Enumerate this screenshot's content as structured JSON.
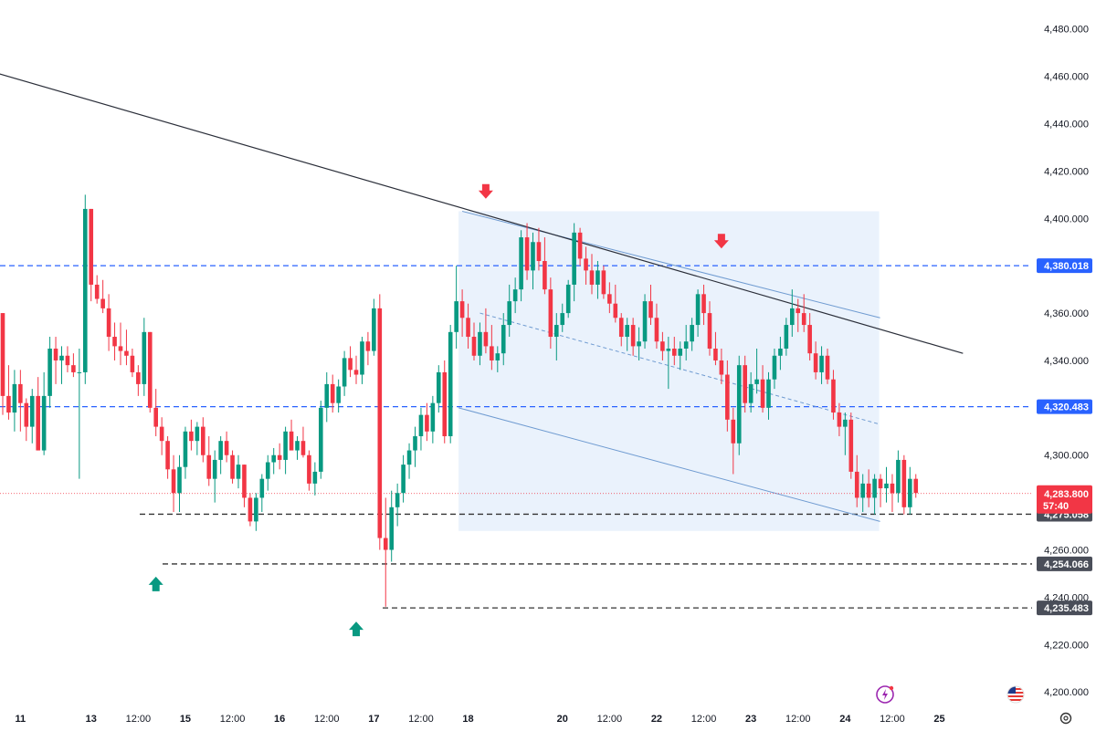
{
  "chart_data": {
    "type": "candlestick",
    "ylim": [
      4192,
      4488
    ],
    "y_ticks": [
      "4,480.000",
      "4,460.000",
      "4,440.000",
      "4,420.000",
      "4,400.000",
      "4,380.000",
      "4,360.000",
      "4,340.000",
      "4,320.000",
      "4,300.000",
      "4,280.000",
      "4,260.000",
      "4,240.000",
      "4,220.000",
      "4,200.000"
    ],
    "y_tick_values": [
      4480,
      4460,
      4440,
      4420,
      4400,
      4380,
      4360,
      4340,
      4320,
      4300,
      4280,
      4260,
      4240,
      4220,
      4200
    ],
    "x_ticks": [
      "11",
      "13",
      "12:00",
      "15",
      "12:00",
      "16",
      "12:00",
      "17",
      "12:00",
      "18",
      "20",
      "12:00",
      "22",
      "12:00",
      "23",
      "12:00",
      "24",
      "12:00",
      "25"
    ],
    "x_tick_bold": [
      true,
      true,
      false,
      true,
      false,
      true,
      false,
      true,
      false,
      true,
      true,
      false,
      true,
      false,
      true,
      false,
      true,
      false,
      true
    ],
    "x_tick_index": [
      3,
      15,
      23,
      31,
      39,
      47,
      55,
      63,
      71,
      79,
      95,
      103,
      111,
      119,
      127,
      135,
      143,
      151,
      159
    ],
    "levels": [
      {
        "label": "4,380.018",
        "value": 4380.018,
        "style": "blue-dashed"
      },
      {
        "label": "4,320.483",
        "value": 4320.483,
        "style": "blue-dashed"
      },
      {
        "label": "4,275.058",
        "value": 4275.058,
        "style": "black-dashed"
      },
      {
        "label": "4,254.066",
        "value": 4254.066,
        "style": "black-dashed"
      },
      {
        "label": "4,235.483",
        "value": 4235.483,
        "style": "black-dashed"
      }
    ],
    "current_price": {
      "label": "4,283.800",
      "countdown": "57:40",
      "value": 4283.8
    },
    "trendline": {
      "x1": -0.5,
      "y1": 4461,
      "x2": 163,
      "y2": 4343
    },
    "channel": {
      "upper": [
        78,
        4403,
        148,
        4358
      ],
      "lower": [
        78,
        4320,
        148,
        4272
      ],
      "mid": [
        81,
        4360,
        148,
        4313
      ]
    },
    "markers": [
      {
        "type": "down",
        "x": 82,
        "y": 4411
      },
      {
        "type": "down",
        "x": 122,
        "y": 4390
      },
      {
        "type": "up",
        "x": 26,
        "y": 4246
      },
      {
        "type": "up",
        "x": 60,
        "y": 4227
      }
    ],
    "colors": {
      "up": "#089981",
      "down": "#f23645",
      "level_blue": "#2962ff",
      "level_black": "#333333",
      "channel_fill": "#eaf2fc",
      "channel_line": "#6f9bd1",
      "tag_blue": "#2962ff",
      "tag_gray": "#4a4e59",
      "tag_red": "#f23645"
    },
    "candles": [
      [
        4360,
        4360,
        4317,
        4325
      ],
      [
        4325,
        4338,
        4315,
        4318
      ],
      [
        4318,
        4336,
        4310,
        4330
      ],
      [
        4330,
        4336,
        4310,
        4322
      ],
      [
        4322,
        4324,
        4306,
        4312
      ],
      [
        4312,
        4328,
        4305,
        4325
      ],
      [
        4325,
        4333,
        4302,
        4302
      ],
      [
        4302,
        4335,
        4300,
        4325
      ],
      [
        4325,
        4350,
        4320,
        4345
      ],
      [
        4345,
        4350,
        4330,
        4340
      ],
      [
        4340,
        4346,
        4330,
        4342
      ],
      [
        4342,
        4346,
        4335,
        4338
      ],
      [
        4338,
        4343,
        4333,
        4335
      ],
      [
        4335,
        4345,
        4290,
        4335
      ],
      [
        4335,
        4410,
        4330,
        4404
      ],
      [
        4404,
        4404,
        4365,
        4372
      ],
      [
        4372,
        4376,
        4364,
        4366
      ],
      [
        4366,
        4374,
        4360,
        4362
      ],
      [
        4362,
        4368,
        4344,
        4350
      ],
      [
        4350,
        4356,
        4340,
        4346
      ],
      [
        4346,
        4356,
        4338,
        4344
      ],
      [
        4344,
        4353,
        4338,
        4342
      ],
      [
        4342,
        4345,
        4333,
        4335
      ],
      [
        4335,
        4338,
        4325,
        4330
      ],
      [
        4330,
        4358,
        4325,
        4352
      ],
      [
        4352,
        4352,
        4318,
        4320
      ],
      [
        4320,
        4328,
        4308,
        4312
      ],
      [
        4312,
        4316,
        4300,
        4306
      ],
      [
        4306,
        4308,
        4290,
        4294
      ],
      [
        4294,
        4300,
        4276,
        4284
      ],
      [
        4284,
        4300,
        4276,
        4295
      ],
      [
        4295,
        4312,
        4290,
        4310
      ],
      [
        4310,
        4315,
        4302,
        4306
      ],
      [
        4306,
        4314,
        4300,
        4312
      ],
      [
        4312,
        4316,
        4297,
        4300
      ],
      [
        4300,
        4308,
        4287,
        4290
      ],
      [
        4290,
        4302,
        4280,
        4298
      ],
      [
        4298,
        4308,
        4292,
        4306
      ],
      [
        4306,
        4310,
        4297,
        4300
      ],
      [
        4300,
        4302,
        4288,
        4290
      ],
      [
        4290,
        4300,
        4286,
        4296
      ],
      [
        4296,
        4296,
        4278,
        4282
      ],
      [
        4282,
        4284,
        4270,
        4272
      ],
      [
        4272,
        4284,
        4268,
        4282
      ],
      [
        4282,
        4292,
        4276,
        4290
      ],
      [
        4290,
        4300,
        4285,
        4297
      ],
      [
        4297,
        4303,
        4292,
        4300
      ],
      [
        4300,
        4305,
        4294,
        4298
      ],
      [
        4298,
        4312,
        4292,
        4310
      ],
      [
        4310,
        4315,
        4302,
        4302
      ],
      [
        4302,
        4308,
        4298,
        4306
      ],
      [
        4306,
        4312,
        4299,
        4300
      ],
      [
        4300,
        4302,
        4285,
        4288
      ],
      [
        4288,
        4297,
        4283,
        4293
      ],
      [
        4293,
        4323,
        4290,
        4320
      ],
      [
        4320,
        4335,
        4314,
        4330
      ],
      [
        4330,
        4334,
        4318,
        4322
      ],
      [
        4322,
        4332,
        4318,
        4329
      ],
      [
        4329,
        4344,
        4325,
        4341
      ],
      [
        4341,
        4346,
        4333,
        4336
      ],
      [
        4336,
        4342,
        4330,
        4334
      ],
      [
        4334,
        4350,
        4330,
        4348
      ],
      [
        4348,
        4352,
        4338,
        4344
      ],
      [
        4344,
        4366,
        4342,
        4362
      ],
      [
        4362,
        4368,
        4260,
        4265
      ],
      [
        4265,
        4282,
        4236,
        4260
      ],
      [
        4260,
        4285,
        4255,
        4278
      ],
      [
        4278,
        4288,
        4270,
        4284
      ],
      [
        4284,
        4300,
        4280,
        4296
      ],
      [
        4296,
        4305,
        4290,
        4302
      ],
      [
        4302,
        4312,
        4295,
        4308
      ],
      [
        4308,
        4320,
        4302,
        4317
      ],
      [
        4317,
        4322,
        4306,
        4310
      ],
      [
        4310,
        4325,
        4305,
        4322
      ],
      [
        4322,
        4338,
        4318,
        4335
      ],
      [
        4335,
        4340,
        4305,
        4308
      ],
      [
        4308,
        4355,
        4305,
        4352
      ],
      [
        4352,
        4380,
        4345,
        4365
      ],
      [
        4365,
        4370,
        4350,
        4358
      ],
      [
        4358,
        4364,
        4345,
        4350
      ],
      [
        4350,
        4356,
        4340,
        4342
      ],
      [
        4342,
        4356,
        4338,
        4352
      ],
      [
        4352,
        4362,
        4343,
        4346
      ],
      [
        4346,
        4355,
        4336,
        4340
      ],
      [
        4340,
        4346,
        4335,
        4343
      ],
      [
        4343,
        4360,
        4338,
        4355
      ],
      [
        4355,
        4372,
        4350,
        4365
      ],
      [
        4365,
        4375,
        4360,
        4370
      ],
      [
        4370,
        4395,
        4365,
        4392
      ],
      [
        4392,
        4398,
        4374,
        4378
      ],
      [
        4378,
        4394,
        4370,
        4390
      ],
      [
        4390,
        4396,
        4378,
        4382
      ],
      [
        4382,
        4392,
        4368,
        4370
      ],
      [
        4370,
        4375,
        4345,
        4350
      ],
      [
        4350,
        4360,
        4340,
        4355
      ],
      [
        4355,
        4364,
        4352,
        4360
      ],
      [
        4360,
        4374,
        4358,
        4372
      ],
      [
        4372,
        4398,
        4365,
        4394
      ],
      [
        4394,
        4396,
        4380,
        4383
      ],
      [
        4383,
        4388,
        4372,
        4378
      ],
      [
        4378,
        4385,
        4368,
        4372
      ],
      [
        4372,
        4382,
        4366,
        4378
      ],
      [
        4378,
        4380,
        4366,
        4368
      ],
      [
        4368,
        4373,
        4360,
        4364
      ],
      [
        4364,
        4372,
        4356,
        4358
      ],
      [
        4358,
        4360,
        4346,
        4350
      ],
      [
        4350,
        4358,
        4344,
        4355
      ],
      [
        4355,
        4358,
        4342,
        4346
      ],
      [
        4346,
        4354,
        4340,
        4348
      ],
      [
        4348,
        4368,
        4345,
        4365
      ],
      [
        4365,
        4372,
        4355,
        4358
      ],
      [
        4358,
        4364,
        4345,
        4348
      ],
      [
        4348,
        4352,
        4340,
        4344
      ],
      [
        4344,
        4350,
        4328,
        4345
      ],
      [
        4345,
        4350,
        4338,
        4342
      ],
      [
        4342,
        4348,
        4336,
        4345
      ],
      [
        4345,
        4355,
        4340,
        4348
      ],
      [
        4348,
        4358,
        4344,
        4355
      ],
      [
        4355,
        4370,
        4350,
        4368
      ],
      [
        4368,
        4372,
        4355,
        4360
      ],
      [
        4360,
        4365,
        4342,
        4345
      ],
      [
        4345,
        4352,
        4338,
        4340
      ],
      [
        4340,
        4345,
        4330,
        4334
      ],
      [
        4334,
        4340,
        4310,
        4315
      ],
      [
        4315,
        4320,
        4292,
        4305
      ],
      [
        4305,
        4342,
        4300,
        4338
      ],
      [
        4338,
        4342,
        4318,
        4322
      ],
      [
        4322,
        4335,
        4318,
        4330
      ],
      [
        4330,
        4345,
        4326,
        4332
      ],
      [
        4332,
        4338,
        4318,
        4320
      ],
      [
        4320,
        4335,
        4315,
        4332
      ],
      [
        4332,
        4345,
        4328,
        4342
      ],
      [
        4342,
        4350,
        4336,
        4345
      ],
      [
        4345,
        4358,
        4342,
        4355
      ],
      [
        4355,
        4370,
        4350,
        4362
      ],
      [
        4362,
        4366,
        4352,
        4360
      ],
      [
        4360,
        4368,
        4352,
        4355
      ],
      [
        4355,
        4360,
        4340,
        4343
      ],
      [
        4343,
        4348,
        4332,
        4335
      ],
      [
        4335,
        4346,
        4330,
        4342
      ],
      [
        4342,
        4345,
        4330,
        4332
      ],
      [
        4332,
        4336,
        4315,
        4318
      ],
      [
        4318,
        4322,
        4308,
        4312
      ],
      [
        4312,
        4318,
        4300,
        4315
      ],
      [
        4315,
        4318,
        4290,
        4293
      ],
      [
        4293,
        4300,
        4278,
        4282
      ],
      [
        4282,
        4292,
        4276,
        4288
      ],
      [
        4288,
        4294,
        4278,
        4282
      ],
      [
        4282,
        4292,
        4275,
        4290
      ],
      [
        4290,
        4292,
        4278,
        4286
      ],
      [
        4286,
        4295,
        4280,
        4288
      ],
      [
        4288,
        4292,
        4276,
        4284
      ],
      [
        4284,
        4302,
        4280,
        4298
      ],
      [
        4298,
        4300,
        4275,
        4278
      ],
      [
        4278,
        4295,
        4275,
        4290
      ],
      [
        4290,
        4292,
        4282,
        4284
      ]
    ]
  },
  "icons": {
    "lightning": "lightning-icon",
    "flag": "us-flag-icon",
    "settings": "settings-gear-icon"
  }
}
